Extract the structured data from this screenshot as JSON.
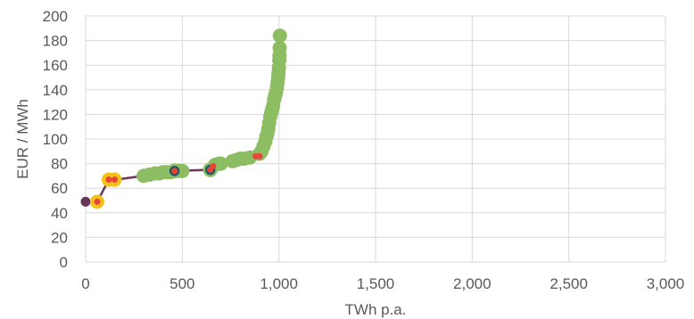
{
  "chart_data": {
    "type": "scatter",
    "title": "",
    "xlabel": "TWh p.a.",
    "ylabel": "EUR / MWh",
    "xlim": [
      0,
      3000
    ],
    "ylim": [
      0,
      200
    ],
    "x_ticks": [
      0,
      500,
      1000,
      1500,
      2000,
      2500,
      3000
    ],
    "x_tick_labels": [
      "0",
      "500",
      "1,000",
      "1,500",
      "2,000",
      "2,500",
      "3,000"
    ],
    "y_ticks": [
      0,
      20,
      40,
      60,
      80,
      100,
      120,
      140,
      160,
      180,
      200
    ],
    "y_tick_labels": [
      "0",
      "20",
      "40",
      "60",
      "80",
      "100",
      "120",
      "140",
      "160",
      "180",
      "200"
    ],
    "grid": true,
    "legend": "none",
    "colors": {
      "line": "#6b3555",
      "green": "#8cbd62",
      "yellow": "#f2c21b",
      "red": "#e8443a",
      "teal": "#1e5a66",
      "grid": "#d9d9d9",
      "tick_text": "#595959"
    },
    "line_series": {
      "x": [
        0,
        60,
        120,
        160,
        300,
        460,
        650,
        700,
        880,
        910,
        960,
        990,
        1000,
        1005
      ],
      "y": [
        49,
        49,
        67,
        67,
        70,
        74,
        75,
        80,
        86,
        88,
        110,
        140,
        160,
        184
      ]
    },
    "green_points": {
      "x": [
        300,
        330,
        360,
        380,
        400,
        420,
        440,
        480,
        500,
        670,
        690,
        700,
        760,
        780,
        800,
        820,
        850,
        900,
        910,
        920,
        930,
        935,
        940,
        945,
        950,
        955,
        960,
        965,
        970,
        975,
        980,
        985,
        990,
        993,
        996,
        998,
        1000,
        1002,
        1003,
        1004,
        1005
      ],
      "y": [
        70,
        71,
        72,
        72,
        73,
        73,
        73,
        74,
        74,
        79,
        80,
        80,
        82,
        83,
        84,
        84,
        85,
        88,
        90,
        94,
        98,
        102,
        104,
        108,
        113,
        118,
        121,
        124,
        127,
        132,
        135,
        138,
        142,
        146,
        150,
        154,
        158,
        164,
        168,
        174,
        184
      ]
    },
    "yellow_points": {
      "x": [
        60,
        120,
        150
      ],
      "y": [
        49,
        67,
        67
      ]
    },
    "teal_points": {
      "x": [
        460,
        645
      ],
      "y": [
        74,
        75
      ]
    },
    "red_points": {
      "x": [
        60,
        120,
        150,
        460,
        645,
        660,
        880,
        900
      ],
      "y": [
        49,
        67,
        67,
        74,
        75,
        78,
        86,
        86
      ]
    },
    "start_point": {
      "x": [
        0
      ],
      "y": [
        49
      ]
    }
  }
}
